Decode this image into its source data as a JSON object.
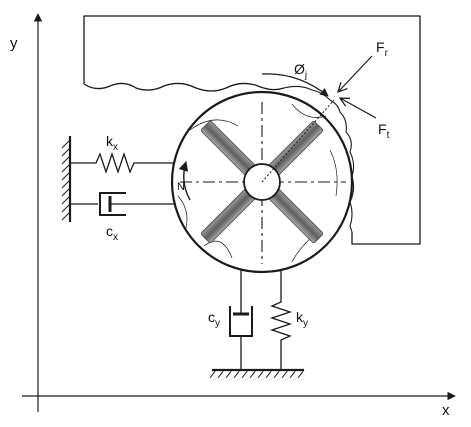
{
  "axes": {
    "x_label": "x",
    "y_label": "y"
  },
  "labels": {
    "kx_main": "k",
    "kx_sub": "x",
    "cx_main": "c",
    "cx_sub": "x",
    "cy_main": "c",
    "cy_sub": "y",
    "ky_main": "k",
    "ky_sub": "y",
    "fr_main": "F",
    "fr_sub": "r",
    "ft_main": "F",
    "ft_sub": "t",
    "phi_main": "Ø",
    "phi_sub": "j",
    "rot_label": "N"
  },
  "colors": {
    "ink": "#1a1a1a",
    "arm_dark": "#6f6f6f",
    "arm_light": "#b5b5b5",
    "paper": "#ffffff"
  }
}
